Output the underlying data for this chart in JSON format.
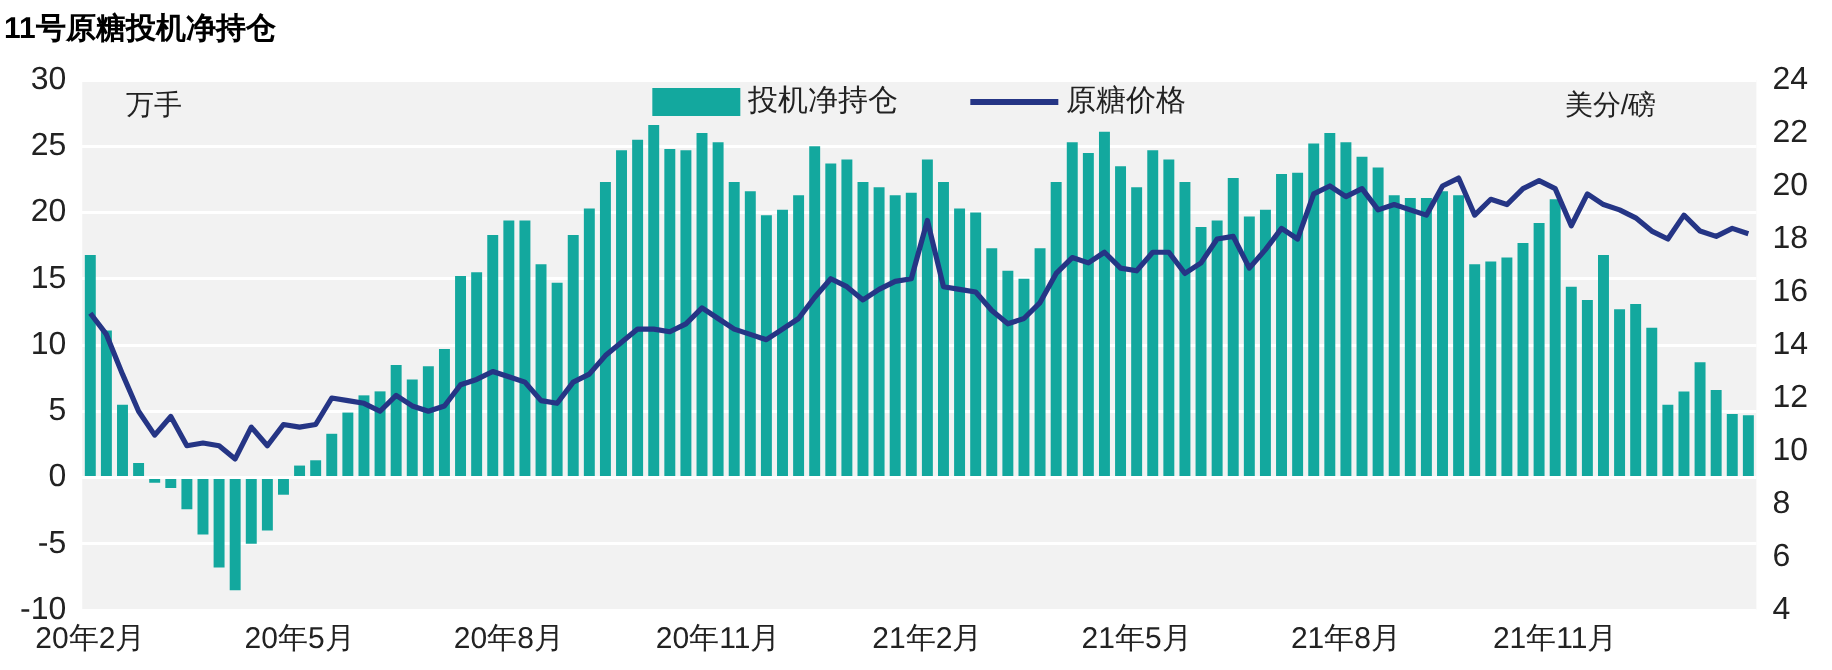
{
  "chart_data": {
    "type": "bar",
    "title": "11号原糖投机净持仓",
    "ylabel": "万手",
    "y2label": "美分/磅",
    "categories": [
      "20年2月",
      null,
      null,
      null,
      null,
      null,
      null,
      null,
      null,
      null,
      null,
      null,
      null,
      "20年5月",
      null,
      null,
      null,
      null,
      null,
      null,
      null,
      null,
      null,
      null,
      null,
      null,
      "20年8月",
      null,
      null,
      null,
      null,
      null,
      null,
      null,
      null,
      null,
      null,
      null,
      null,
      "20年11月",
      null,
      null,
      null,
      null,
      null,
      null,
      null,
      null,
      null,
      null,
      null,
      null,
      "21年2月",
      null,
      null,
      null,
      null,
      null,
      null,
      null,
      null,
      null,
      null,
      null,
      null,
      "21年5月",
      null,
      null,
      null,
      null,
      null,
      null,
      null,
      null,
      null,
      null,
      null,
      null,
      "21年8月",
      null,
      null,
      null,
      null,
      null,
      null,
      null,
      null,
      null,
      null,
      null,
      null,
      "21年11月",
      null,
      null,
      null,
      null,
      null,
      null,
      null,
      null,
      null,
      null,
      null,
      null
    ],
    "series": [
      {
        "name": "投机净持仓",
        "color": "#13a89e",
        "values": [
          16.8,
          11.1,
          5.5,
          1.1,
          -0.4,
          -0.8,
          -2.4,
          -4.3,
          -6.8,
          -8.5,
          -5.0,
          -4.0,
          -1.3,
          0.9,
          1.3,
          3.3,
          4.9,
          6.2,
          6.5,
          8.5,
          7.4,
          8.4,
          9.7,
          15.2,
          15.5,
          18.3,
          19.4,
          19.4,
          16.1,
          14.7,
          18.3,
          20.3,
          22.3,
          24.7,
          25.5,
          26.6,
          24.8,
          24.7,
          26.0,
          25.3,
          22.3,
          21.6,
          19.8,
          20.2,
          21.3,
          25.0,
          23.7,
          24.0,
          22.3,
          21.9,
          21.3,
          21.5,
          24.0,
          22.3,
          20.3,
          20.0,
          17.3,
          15.6,
          15.0,
          17.3,
          22.3,
          25.3,
          24.5,
          26.1,
          23.5,
          21.9,
          24.7,
          24.0,
          22.3,
          18.9,
          19.4,
          22.6,
          19.7,
          20.2,
          22.9,
          23.0,
          25.2,
          26.0,
          25.3,
          24.2,
          23.4,
          21.3,
          21.1,
          21.1,
          21.6,
          21.3,
          16.1,
          16.3,
          16.6,
          17.7,
          19.2,
          21.0,
          14.4,
          13.4,
          16.8,
          12.7,
          13.1,
          11.3,
          5.5,
          6.5,
          8.7,
          6.6,
          4.8,
          4.7
        ]
      },
      {
        "name": "原糖价格",
        "type": "line",
        "axis": "y2",
        "color": "#253585",
        "values": [
          15.2,
          14.4,
          12.9,
          11.5,
          10.6,
          11.3,
          10.2,
          10.3,
          10.2,
          9.7,
          10.9,
          10.2,
          11.0,
          10.9,
          11.0,
          12.0,
          11.9,
          11.8,
          11.5,
          12.1,
          11.7,
          11.5,
          11.7,
          12.5,
          12.7,
          13.0,
          12.8,
          12.6,
          11.9,
          11.8,
          12.6,
          12.9,
          13.6,
          14.1,
          14.6,
          14.6,
          14.5,
          14.8,
          15.4,
          15.0,
          14.6,
          14.4,
          14.2,
          14.6,
          15.0,
          15.8,
          16.5,
          16.2,
          15.7,
          16.1,
          16.4,
          16.5,
          18.7,
          16.2,
          16.1,
          16.0,
          15.3,
          14.8,
          15.0,
          15.6,
          16.7,
          17.3,
          17.1,
          17.5,
          16.9,
          16.8,
          17.5,
          17.5,
          16.7,
          17.1,
          18.0,
          18.1,
          16.9,
          17.6,
          18.4,
          18.0,
          19.7,
          20.0,
          19.6,
          19.9,
          19.1,
          19.3,
          19.1,
          18.9,
          20.0,
          20.3,
          18.9,
          19.5,
          19.3,
          19.9,
          20.2,
          19.9,
          18.5,
          19.7,
          19.3,
          19.1,
          18.8,
          18.3,
          18.0,
          18.9,
          18.3,
          18.1,
          18.4,
          18.2
        ]
      }
    ],
    "ylim": [
      -10,
      30
    ],
    "yticks": [
      -10,
      -5,
      0,
      5,
      10,
      15,
      20,
      25,
      30
    ],
    "y2lim": [
      4,
      24
    ],
    "y2ticks": [
      4,
      6,
      8,
      10,
      12,
      14,
      16,
      18,
      20,
      22,
      24
    ],
    "grid": "y",
    "legend": "top",
    "marker": "none",
    "line_style": "solid"
  }
}
